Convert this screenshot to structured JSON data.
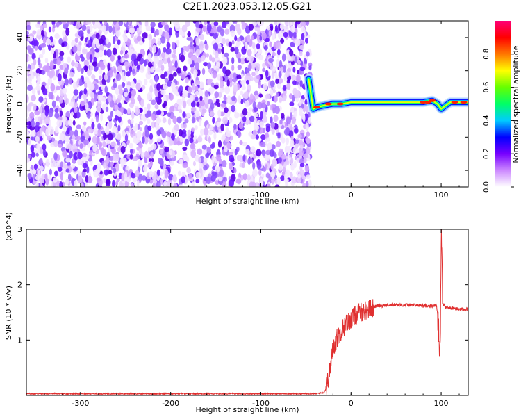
{
  "title": "C2E1.2023.053.12.05.G21",
  "chart_data": [
    {
      "type": "heatmap",
      "xlabel": "Height of straight line (km)",
      "ylabel": "Frequency (Hz)",
      "xlim": [
        -360,
        130
      ],
      "ylim": [
        -50,
        50
      ],
      "xticks": [
        -300,
        -200,
        -100,
        0,
        100
      ],
      "yticks": [
        -40,
        -20,
        0,
        20,
        40
      ],
      "colorbar": {
        "label": "Normalized spectral amplitude",
        "range": [
          0.0,
          1.0
        ],
        "ticks": [
          0.0,
          0.2,
          0.4,
          0.6,
          0.8
        ],
        "colors": [
          "#ffffff",
          "#cc88ff",
          "#7700ff",
          "#0000ff",
          "#00ccff",
          "#00ff66",
          "#66ff00",
          "#ffff00",
          "#ff7700",
          "#ff0000",
          "#ff0077"
        ]
      },
      "noise_region_x": [
        -360,
        -45
      ],
      "signal_line": {
        "x": [
          -47,
          -42,
          -38,
          -30,
          -20,
          -10,
          0,
          10,
          20,
          40,
          60,
          80,
          90,
          96,
          100,
          110,
          120,
          130
        ],
        "y": [
          15,
          -3,
          -2,
          -1,
          0,
          0,
          1,
          1,
          1,
          1,
          1,
          1,
          2,
          0,
          -3,
          1,
          1,
          1
        ]
      }
    },
    {
      "type": "line",
      "xlabel": "Height of straight line (km)",
      "ylabel": "SNR (10 * v/v)",
      "yscale_label": "(x10^4)",
      "xlim": [
        -360,
        130
      ],
      "ylim": [
        0,
        3
      ],
      "xticks": [
        -300,
        -200,
        -100,
        0,
        100
      ],
      "yticks": [
        1,
        2,
        3
      ],
      "line_color": "#e03030",
      "series": [
        {
          "x": [
            -360,
            -300,
            -200,
            -100,
            -40,
            -30,
            -27,
            -25,
            -22,
            -20,
            -15,
            -10,
            -5,
            0,
            5,
            10,
            15,
            20,
            25,
            30,
            40,
            50,
            60,
            70,
            80,
            90,
            95,
            97,
            98,
            99,
            100,
            101,
            102,
            105,
            110,
            120,
            130
          ],
          "y": [
            0.03,
            0.03,
            0.03,
            0.03,
            0.03,
            0.05,
            0.15,
            0.35,
            0.6,
            0.85,
            1.05,
            1.2,
            1.3,
            1.38,
            1.45,
            1.5,
            1.53,
            1.56,
            1.6,
            1.62,
            1.63,
            1.64,
            1.63,
            1.63,
            1.62,
            1.62,
            1.63,
            1.3,
            1.0,
            0.7,
            3.0,
            2.2,
            1.65,
            1.6,
            1.58,
            1.56,
            1.55
          ]
        }
      ]
    }
  ]
}
